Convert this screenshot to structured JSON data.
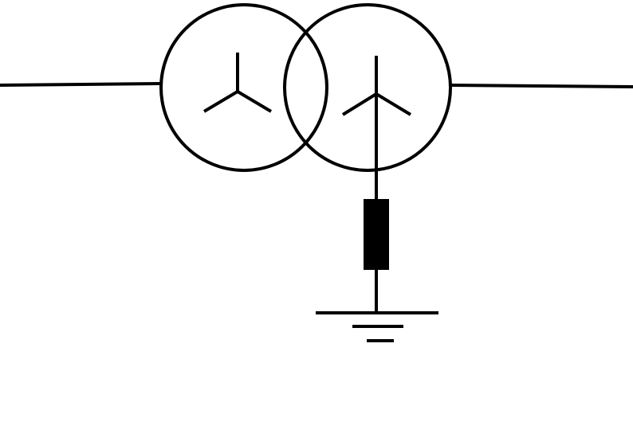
{
  "diagram": {
    "kind": "two-winding transformer, wye–wye, secondary neutral grounded through impedance",
    "line_color": "#000000",
    "fill_color": "#000000",
    "background_color": "#ffffff",
    "components": [
      {
        "id": "line-left",
        "type": "conductor"
      },
      {
        "id": "primary-winding",
        "type": "winding",
        "connection": "wye"
      },
      {
        "id": "secondary-winding",
        "type": "winding",
        "connection": "wye"
      },
      {
        "id": "line-right",
        "type": "conductor"
      },
      {
        "id": "neutral-impedance",
        "type": "resistor"
      },
      {
        "id": "ground",
        "type": "earth"
      }
    ]
  }
}
